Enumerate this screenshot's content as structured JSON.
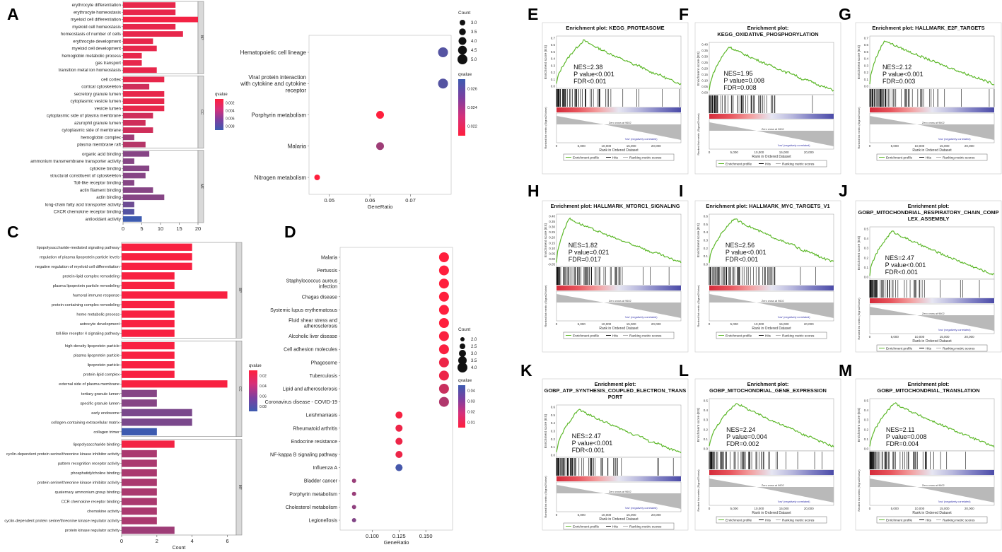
{
  "panel_letters": [
    "A",
    "B",
    "C",
    "D",
    "E",
    "F",
    "G",
    "H",
    "I",
    "J",
    "K",
    "L",
    "M"
  ],
  "colors": {
    "red": "#ff1f3d",
    "purple": "#7d3fa0",
    "blue": "#3d5bb0",
    "green": "#5db82a"
  },
  "chart_data": [
    {
      "id": "A",
      "type": "bar",
      "orientation": "horizontal",
      "xlabel": "",
      "xlim": [
        0,
        20
      ],
      "xticks": [
        "0",
        "5",
        "10",
        "15",
        "20"
      ],
      "legend_title": "qvalue",
      "legend_ticks": [
        "0.002",
        "0.004",
        "0.006",
        "0.008"
      ],
      "groups": [
        {
          "facet": "BP",
          "categories": [
            "erythrocyte differentiation",
            "erythrocyte homeostasis",
            "myeloid cell differentiation",
            "myeloid cell homeostasis",
            "homeostasis of number of cells",
            "erythrocyte development",
            "myeloid cell development",
            "hemoglobin metabolic process",
            "gas transport",
            "transition metal ion homeostasis"
          ],
          "values": [
            14,
            14,
            20,
            14,
            16,
            8,
            9,
            5,
            5,
            9
          ],
          "qcolors": [
            0.001,
            0.001,
            0.0005,
            0.001,
            0.001,
            0.001,
            0.001,
            0.001,
            0.001,
            0.001
          ]
        },
        {
          "facet": "CC",
          "categories": [
            "cell cortex",
            "cortical cytoskeleton",
            "secretory granule lumen",
            "cytoplasmic vesicle lumen",
            "vesicle lumen",
            "cytoplasmic side of plasma membrane",
            "azurophil granule lumen",
            "cytoplasmic side of membrane",
            "hemoglobin complex",
            "plasma membrane raft"
          ],
          "values": [
            11,
            7,
            11,
            11,
            11,
            8,
            6,
            8,
            3,
            6
          ],
          "qcolors": [
            0.001,
            0.002,
            0.001,
            0.001,
            0.001,
            0.002,
            0.002,
            0.002,
            0.004,
            0.003
          ]
        },
        {
          "facet": "MF",
          "categories": [
            "organic acid binding",
            "ammonium transmembrane transporter activity",
            "cytokine binding",
            "structural constituent of cytoskeleton",
            "Toll-like receptor binding",
            "actin filament binding",
            "actin binding",
            "long-chain fatty acid transporter activity",
            "CXCR chemokine receptor binding",
            "antioxidant activity"
          ],
          "values": [
            7,
            3,
            7,
            6,
            3,
            8,
            11,
            3,
            3,
            5
          ],
          "qcolors": [
            0.005,
            0.005,
            0.005,
            0.005,
            0.005,
            0.005,
            0.005,
            0.006,
            0.007,
            0.008
          ]
        }
      ]
    },
    {
      "id": "B",
      "type": "scatter",
      "xlabel": "GeneRatio",
      "xlim": [
        0.045,
        0.08
      ],
      "xticks": [
        0.05,
        0.06,
        0.07
      ],
      "categories": [
        "Hematopoietic cell lineage",
        "Viral protein interaction with cytokine and cytokine receptor",
        "Porphyrin metabolism",
        "Malaria",
        "Nitrogen metabolism"
      ],
      "category_lines": [
        [
          "Hematopoietic cell lineage"
        ],
        [
          "Viral protein interaction",
          "with cytokine and cytokine",
          "receptor"
        ],
        [
          "Porphyrin metabolism"
        ],
        [
          "Malaria"
        ],
        [
          "Nitrogen metabolism"
        ]
      ],
      "x": [
        0.078,
        0.078,
        0.0625,
        0.0625,
        0.047
      ],
      "count": [
        5,
        5,
        4,
        4,
        3
      ],
      "qvalue": [
        0.029,
        0.029,
        0.022,
        0.026,
        0.022
      ],
      "legend_count_title": "Count",
      "legend_count_labels": [
        "3.0",
        "3.5",
        "4.0",
        "4.5",
        "5.0"
      ],
      "legend_q_title": "qvalue",
      "legend_q_labels": [
        "0.026",
        "0.024",
        "0.022"
      ]
    },
    {
      "id": "C",
      "type": "bar",
      "orientation": "horizontal",
      "xlabel": "Count",
      "xlim": [
        0,
        6.5
      ],
      "xticks": [
        "0",
        "2",
        "4",
        "6"
      ],
      "legend_title": "qvalue",
      "legend_ticks": [
        "0.02",
        "0.04",
        "0.06",
        "0.08"
      ],
      "groups": [
        {
          "facet": "BP",
          "categories": [
            "lipopolysaccharide-mediated signaling pathway",
            "regulation of plasma lipoprotein particle levels",
            "negative regulation of myeloid cell differentiation",
            "protein-lipid complex remodeling",
            "plasma lipoprotein particle remodeling",
            "humoral immune response",
            "protein-containing complex remodeling",
            "heme metabolic process",
            "astrocyte development",
            "toll-like receptor 4 signaling pathway"
          ],
          "values": [
            4,
            4,
            4,
            3,
            3,
            6,
            3,
            3,
            3,
            3
          ],
          "qcolors": [
            0.003,
            0.003,
            0.003,
            0.003,
            0.003,
            0.003,
            0.003,
            0.003,
            0.003,
            0.003
          ]
        },
        {
          "facet": "CC",
          "categories": [
            "high-density lipoprotein particle",
            "plasma lipoprotein particle",
            "lipoprotein particle",
            "protein-lipid complex",
            "external side of plasma membrane",
            "tertiary granule lumen",
            "specific granule lumen",
            "early endosome",
            "collagen-containing extracellular matrix",
            "collagen trimer"
          ],
          "values": [
            3,
            3,
            3,
            3,
            6,
            2,
            2,
            4,
            4,
            2
          ],
          "qcolors": [
            0.003,
            0.003,
            0.003,
            0.003,
            0.003,
            0.05,
            0.05,
            0.055,
            0.055,
            0.08
          ]
        },
        {
          "facet": "MF",
          "categories": [
            "lipopolysaccharide binding",
            "cyclin-dependent protein serine/threonine kinase inhibitor activity",
            "pattern recognition receptor activity",
            "phosphatidylcholine binding",
            "protein serine/threonine kinase inhibitor activity",
            "quaternary ammonium group binding",
            "CCR chemokine receptor binding",
            "chemokine activity",
            "cyclin-dependent protein serine/threonine kinase regulator activity",
            "protein kinase regulator activity"
          ],
          "values": [
            3,
            2,
            2,
            2,
            2,
            2,
            2,
            2,
            2,
            3
          ],
          "qcolors": [
            0.005,
            0.035,
            0.035,
            0.035,
            0.035,
            0.035,
            0.035,
            0.035,
            0.035,
            0.04
          ]
        }
      ]
    },
    {
      "id": "D",
      "type": "scatter",
      "xlabel": "GeneRatio",
      "xlim": [
        0.07,
        0.175
      ],
      "xticks": [
        "0.100",
        "0.125",
        "0.150"
      ],
      "categories": [
        "Malaria",
        "Pertussis",
        "Staphylococcus aureus infection",
        "Chagas disease",
        "Systemic lupus erythematosus",
        "Fluid shear stress and atherosclerosis",
        "Alcoholic liver disease",
        "Cell adhesion molecules",
        "Phagosome",
        "Tuberculosis",
        "Lipid and atherosclerosis",
        "Coronavirus disease - COVID-19",
        "Leishmaniasis",
        "Rheumatoid arthritis",
        "Endocrine resistance",
        "NF-kappa B signaling pathway",
        "Influenza A",
        "Bladder cancer",
        "Porphyrin metabolism",
        "Cholesterol metabolism",
        "Legionellosis"
      ],
      "category_lines": [
        [
          "Malaria"
        ],
        [
          "Pertussis"
        ],
        [
          "Staphylococcus aureus",
          "infection"
        ],
        [
          "Chagas disease"
        ],
        [
          "Systemic lupus erythematosus"
        ],
        [
          "Fluid shear stress and",
          "atherosclerosis"
        ],
        [
          "Alcoholic liver disease"
        ],
        [
          "Cell adhesion molecules"
        ],
        [
          "Phagosome"
        ],
        [
          "Tuberculosis"
        ],
        [
          "Lipid and atherosclerosis"
        ],
        [
          "Coronavirus disease - COVID-19"
        ],
        [
          "Leishmaniasis"
        ],
        [
          "Rheumatoid arthritis"
        ],
        [
          "Endocrine resistance"
        ],
        [
          "NF-kappa B signaling pathway"
        ],
        [
          "Influenza A"
        ],
        [
          "Bladder cancer"
        ],
        [
          "Porphyrin metabolism"
        ],
        [
          "Cholesterol metabolism"
        ],
        [
          "Legionellosis"
        ]
      ],
      "x": [
        0.167,
        0.167,
        0.167,
        0.167,
        0.167,
        0.167,
        0.167,
        0.167,
        0.167,
        0.167,
        0.167,
        0.167,
        0.125,
        0.125,
        0.125,
        0.125,
        0.125,
        0.083,
        0.083,
        0.083,
        0.083
      ],
      "count": [
        4,
        4,
        4,
        4,
        4,
        4,
        4,
        4,
        4,
        4,
        4,
        4,
        3,
        3,
        3,
        3,
        3,
        2,
        2,
        2,
        2
      ],
      "qvalue": [
        0.008,
        0.008,
        0.008,
        0.008,
        0.008,
        0.008,
        0.009,
        0.009,
        0.012,
        0.012,
        0.02,
        0.025,
        0.01,
        0.012,
        0.012,
        0.012,
        0.048,
        0.03,
        0.03,
        0.032,
        0.035
      ],
      "legend_count_title": "Count",
      "legend_count_labels": [
        "2.0",
        "2.5",
        "3.0",
        "3.5",
        "4.0"
      ],
      "legend_q_title": "qvalue",
      "legend_q_labels": [
        "0.04",
        "0.03",
        "0.02",
        "0.01"
      ]
    },
    {
      "id": "GSEA",
      "type": "line",
      "ylabel_top": "Enrichment score (ES)",
      "ylabel_bottom": "Ranked list metric (Signal2Noise)",
      "xlabel": "Rank in Ordered Dataset",
      "pos_label": "'high' (positively correlated)",
      "neg_label": "'low' (negatively correlated)",
      "zero_label": "Zero cross at 9602",
      "legend_labels": [
        "Enrichment profile",
        "Hits",
        "Ranking metric scores"
      ],
      "plots": [
        {
          "panel": "E",
          "title_lines": [
            "Enrichment plot: KEGG_PROTEASOME"
          ],
          "stats": [
            "NES=2.38",
            "P value<0.001",
            "FDR<0.001"
          ],
          "peak_x": 5500,
          "peak_es": 0.73,
          "yticks": [
            "0.7",
            "0.6",
            "0.5",
            "0.4",
            "0.3",
            "0.2",
            "0.1",
            "0.0"
          ],
          "xticks": [
            "0",
            "5,000",
            "10,000",
            "15,000",
            "20,000"
          ]
        },
        {
          "panel": "F",
          "title_lines": [
            "Enrichment plot:",
            "KEGG_OXIDATIVE_PHOSPHORYLATION"
          ],
          "stats": [
            "NES=1.95",
            "P value=0.008",
            "FDR=0.008"
          ],
          "peak_x": 4000,
          "peak_es": 0.38,
          "yticks": [
            "0.40",
            "0.35",
            "0.30",
            "0.25",
            "0.20",
            "0.15",
            "0.10",
            "0.05",
            "0.00"
          ],
          "xticks": [
            "0",
            "5,000",
            "10,000",
            "15,000",
            "20,000"
          ]
        },
        {
          "panel": "G",
          "title_lines": [
            "Enrichment plot: HALLMARK_E2F_TARGETS"
          ],
          "stats": [
            "NES=2.12",
            "P value<0.001",
            "FDR=0.003"
          ],
          "peak_x": 3000,
          "peak_es": 0.7,
          "yticks": [
            "0.7",
            "0.6",
            "0.5",
            "0.4",
            "0.3",
            "0.2",
            "0.1",
            "0.0"
          ],
          "xticks": [
            "0",
            "5,000",
            "10,000",
            "15,000",
            "20,000"
          ]
        },
        {
          "panel": "H",
          "title_lines": [
            "Enrichment plot: HALLMARK_MTORC1_SIGNALING"
          ],
          "stats": [
            "NES=1.82",
            "P value=0.021",
            "FDR=0.017"
          ],
          "peak_x": 2500,
          "peak_es": 0.4,
          "yticks": [
            "0.40",
            "0.35",
            "0.30",
            "0.25",
            "0.20",
            "0.15",
            "0.10",
            "0.05",
            "0.00",
            "-0.05"
          ],
          "xticks": [
            "0",
            "5,000",
            "10,000",
            "15,000",
            "20,000"
          ]
        },
        {
          "panel": "I",
          "title_lines": [
            "Enrichment plot: HALLMARK_MYC_TARGETS_V1"
          ],
          "stats": [
            "NES=2.56",
            "P value<0.001",
            "FDR<0.001"
          ],
          "peak_x": 5000,
          "peak_es": 0.62,
          "yticks": [
            "0.6",
            "0.5",
            "0.4",
            "0.3",
            "0.2",
            "0.1",
            "0.0"
          ],
          "xticks": [
            "0",
            "5,000",
            "10,000",
            "15,000",
            "20,000"
          ]
        },
        {
          "panel": "J",
          "title_lines": [
            "Enrichment plot:",
            "GOBP_MITOCHONDRIAL_RESPIRATORY_CHAIN_COMP",
            "LEX_ASSEMBLY"
          ],
          "stats": [
            "NES=2.47",
            "P value<0.001",
            "FDR<0.001"
          ],
          "peak_x": 4500,
          "peak_es": 0.55,
          "yticks": [
            "0.5",
            "0.4",
            "0.3",
            "0.2",
            "0.1",
            "0.0"
          ],
          "xticks": [
            "0",
            "5,000",
            "10,000",
            "15,000",
            "20,000"
          ]
        },
        {
          "panel": "K",
          "title_lines": [
            "Enrichment plot:",
            "GOBP_ATP_SYNTHESIS_COUPLED_ELECTRON_TRANS",
            "PORT"
          ],
          "stats": [
            "NES=2.47",
            "P value<0.001",
            "FDR<0.001"
          ],
          "peak_x": 4500,
          "peak_es": 0.62,
          "yticks": [
            "0.6",
            "0.5",
            "0.4",
            "0.3",
            "0.2",
            "0.1",
            "0.0"
          ],
          "xticks": [
            "0",
            "5,000",
            "10,000",
            "15,000",
            "20,000"
          ]
        },
        {
          "panel": "L",
          "title_lines": [
            "Enrichment plot:",
            "GOBP_MITOCHONDRIAL_GENE_EXPRESSION"
          ],
          "stats": [
            "NES=2.24",
            "P value=0.004",
            "FDR=0.002"
          ],
          "peak_x": 5500,
          "peak_es": 0.48,
          "yticks": [
            "0.5",
            "0.4",
            "0.3",
            "0.2",
            "0.1",
            "0.0"
          ],
          "xticks": [
            "0",
            "5,000",
            "10,000",
            "15,000",
            "20,000"
          ]
        },
        {
          "panel": "M",
          "title_lines": [
            "Enrichment plot:",
            "GOBP_MITOCHONDRIAL_TRANSLATION"
          ],
          "stats": [
            "NES=2.11",
            "P value=0.008",
            "FDR=0.004"
          ],
          "peak_x": 5000,
          "peak_es": 0.45,
          "yticks": [
            "0.5",
            "0.4",
            "0.3",
            "0.2",
            "0.1",
            "0.0"
          ],
          "xticks": [
            "0",
            "5,000",
            "10,000",
            "15,000",
            "20,000"
          ]
        }
      ]
    }
  ]
}
